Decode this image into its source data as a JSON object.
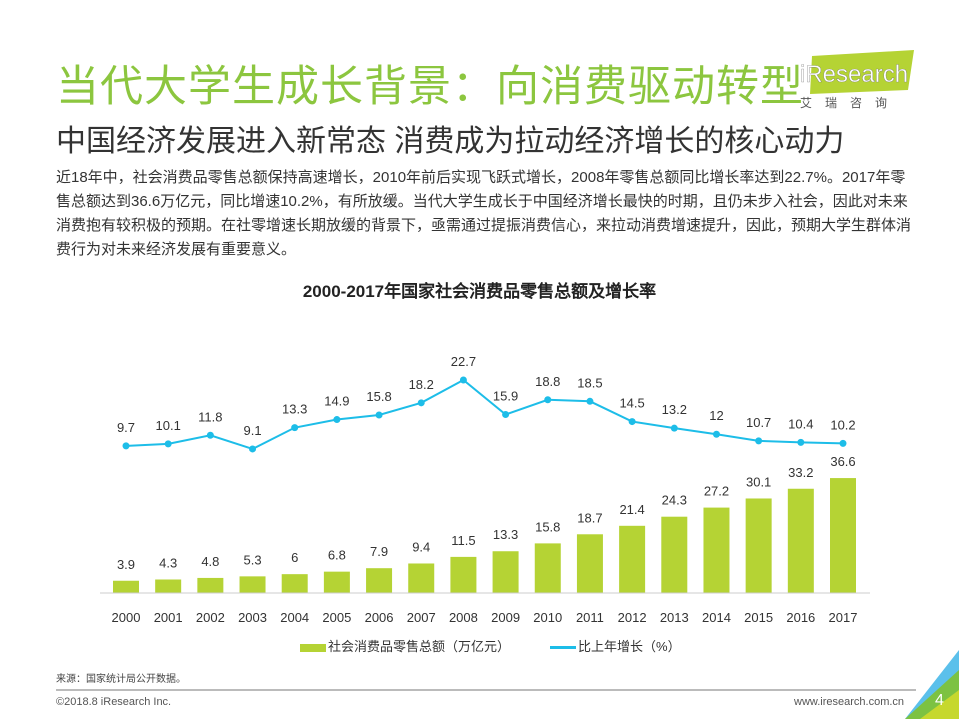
{
  "header": {
    "title": "当代大学生成长背景：向消费驱动转型",
    "logo_text": "iResearch",
    "logo_sub": "艾瑞咨询",
    "subtitle": "中国经济发展进入新常态 消费成为拉动经济增长的核心动力",
    "body": "近18年中，社会消费品零售总额保持高速增长，2010年前后实现飞跃式增长，2008年零售总额同比增长率达到22.7%。2017年零售总额达到36.6万亿元，同比增速10.2%，有所放缓。当代大学生成长于中国经济增长最快的时期，且仍未步入社会，因此对未来消费抱有较积极的预期。在社零增速长期放缓的背景下，亟需通过提振消费信心，来拉动消费增速提升，因此，预期大学生群体消费行为对未来经济发展有重要意义。"
  },
  "chart_data": {
    "type": "bar+line",
    "title": "2000-2017年国家社会消费品零售总额及增长率",
    "categories": [
      "2000",
      "2001",
      "2002",
      "2003",
      "2004",
      "2005",
      "2006",
      "2007",
      "2008",
      "2009",
      "2010",
      "2011",
      "2012",
      "2013",
      "2014",
      "2015",
      "2016",
      "2017"
    ],
    "series": [
      {
        "name": "社会消费品零售总额（万亿元）",
        "type": "bar",
        "color": "#b5d334",
        "values": [
          3.9,
          4.3,
          4.8,
          5.3,
          6.0,
          6.8,
          7.9,
          9.4,
          11.5,
          13.3,
          15.8,
          18.7,
          21.4,
          24.3,
          27.2,
          30.1,
          33.2,
          36.6
        ]
      },
      {
        "name": "比上年增长（%）",
        "type": "line",
        "color": "#1dbde8",
        "values": [
          9.7,
          10.1,
          11.8,
          9.1,
          13.3,
          14.9,
          15.8,
          18.2,
          22.7,
          15.9,
          18.8,
          18.5,
          14.5,
          13.2,
          12,
          10.7,
          10.4,
          10.2
        ]
      }
    ],
    "legend": "bottom",
    "grid": false
  },
  "footer": {
    "source": "来源：国家统计局公开数据。",
    "copyright": "©2018.8 iResearch Inc.",
    "url": "www.iresearch.com.cn",
    "page": "4"
  },
  "colors": {
    "accent": "#8cc63f",
    "bar": "#b5d334",
    "line": "#1dbde8"
  }
}
